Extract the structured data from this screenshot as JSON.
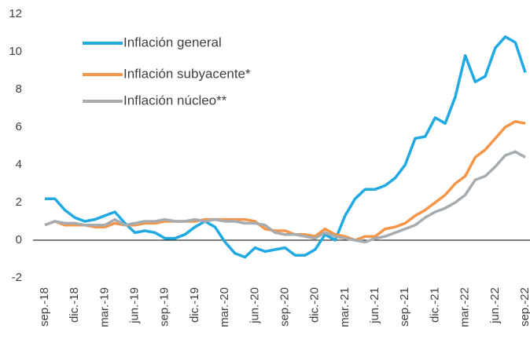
{
  "chart_data": {
    "type": "line",
    "categories": [
      "sep.-18",
      null,
      null,
      "dic.-18",
      null,
      null,
      "mar.-19",
      null,
      null,
      "jun.-19",
      null,
      null,
      "sep.-19",
      null,
      null,
      "dic.-19",
      null,
      null,
      "mar.-20",
      null,
      null,
      "jun.-20",
      null,
      null,
      "sep.-20",
      null,
      null,
      "dic.-20",
      null,
      null,
      "mar.-21",
      null,
      null,
      "jun.-21",
      null,
      null,
      "sep.-21",
      null,
      null,
      "dic.-21",
      null,
      null,
      "mar.-22",
      null,
      null,
      "jun.-22",
      null,
      null,
      "sep.-22"
    ],
    "series": [
      {
        "name": "Inflación general",
        "color": "#21a9e1",
        "values": [
          2.2,
          2.2,
          1.6,
          1.2,
          1.0,
          1.1,
          1.3,
          1.5,
          0.9,
          0.4,
          0.5,
          0.4,
          0.1,
          0.1,
          0.3,
          0.7,
          1.0,
          0.7,
          -0.1,
          -0.7,
          -0.9,
          -0.4,
          -0.6,
          -0.5,
          -0.4,
          -0.8,
          -0.8,
          -0.5,
          0.3,
          0.0,
          1.3,
          2.2,
          2.7,
          2.7,
          2.9,
          3.3,
          4.0,
          5.4,
          5.5,
          6.5,
          6.2,
          7.6,
          9.8,
          8.4,
          8.7,
          10.2,
          10.8,
          10.5,
          8.9
        ]
      },
      {
        "name": "Inflación subyacente*",
        "color": "#f39649",
        "values": [
          0.8,
          1.0,
          0.8,
          0.8,
          0.8,
          0.7,
          0.7,
          0.9,
          0.8,
          0.8,
          0.9,
          0.9,
          1.0,
          1.0,
          1.0,
          1.0,
          1.1,
          1.1,
          1.1,
          1.1,
          1.1,
          1.0,
          0.6,
          0.5,
          0.5,
          0.3,
          0.3,
          0.2,
          0.6,
          0.3,
          0.2,
          0.0,
          0.2,
          0.2,
          0.6,
          0.7,
          0.9,
          1.3,
          1.6,
          2.0,
          2.4,
          3.0,
          3.4,
          4.4,
          4.8,
          5.4,
          6.0,
          6.3,
          6.2
        ]
      },
      {
        "name": "Inflación núcleo**",
        "color": "#a6acaf",
        "values": [
          0.8,
          1.0,
          0.9,
          0.9,
          0.8,
          0.8,
          0.8,
          1.1,
          0.8,
          0.9,
          1.0,
          1.0,
          1.1,
          1.0,
          1.0,
          1.1,
          1.0,
          1.1,
          1.0,
          1.0,
          0.9,
          0.9,
          0.8,
          0.4,
          0.3,
          0.3,
          0.2,
          0.1,
          0.4,
          0.2,
          0.1,
          0.0,
          -0.1,
          0.1,
          0.2,
          0.4,
          0.6,
          0.8,
          1.2,
          1.5,
          1.7,
          2.0,
          2.4,
          3.2,
          3.4,
          3.9,
          4.5,
          4.7,
          4.4
        ]
      }
    ],
    "ylim": [
      -2,
      12
    ],
    "yticks": [
      -2,
      0,
      2,
      4,
      6,
      8,
      10,
      12
    ],
    "legend": "upper-left"
  }
}
